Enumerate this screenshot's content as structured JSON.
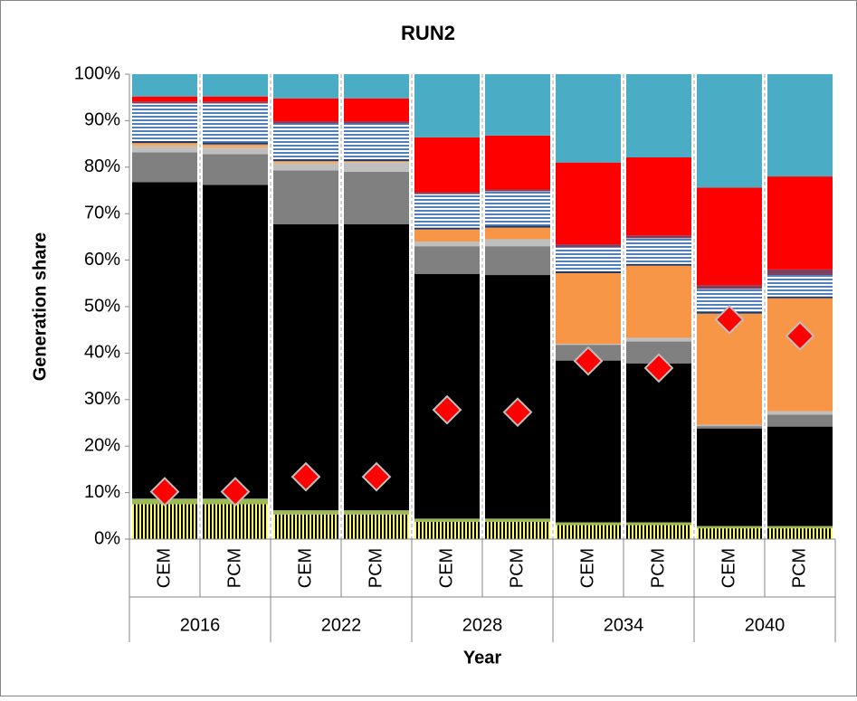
{
  "chart_data": {
    "type": "stacked-bar",
    "title": "RUN2",
    "y_label": "Generation share",
    "x_label": "Year",
    "categories": [
      "CEM",
      "PCM",
      "CEM",
      "PCM",
      "CEM",
      "PCM",
      "CEM",
      "PCM",
      "CEM",
      "PCM"
    ],
    "groups": [
      "2016",
      "2022",
      "2028",
      "2034",
      "2040"
    ],
    "ylim": [
      0,
      100
    ],
    "yticks": [
      {
        "value": 0,
        "label": "0%"
      },
      {
        "value": 10,
        "label": "10%"
      },
      {
        "value": 20,
        "label": "20%"
      },
      {
        "value": 30,
        "label": "30%"
      },
      {
        "value": 40,
        "label": "40%"
      },
      {
        "value": 50,
        "label": "50%"
      },
      {
        "value": 60,
        "label": "60%"
      },
      {
        "value": 70,
        "label": "70%"
      },
      {
        "value": 80,
        "label": "80%"
      },
      {
        "value": 90,
        "label": "90%"
      },
      {
        "value": 100,
        "label": "100%"
      }
    ],
    "legend": false,
    "series": [
      {
        "color": "#ffff66",
        "pattern": "vertical",
        "values": [
          7.5,
          7.5,
          5.3,
          5.3,
          3.7,
          3.7,
          3.0,
          3.0,
          2.3,
          2.3
        ]
      },
      {
        "color": "#9bbb59",
        "values": [
          1.2,
          1.2,
          0.9,
          0.9,
          0.7,
          0.7,
          0.6,
          0.6,
          0.5,
          0.5
        ]
      },
      {
        "color": "#000000",
        "values": [
          68.1,
          67.5,
          61.5,
          61.5,
          52.6,
          52.4,
          34.8,
          34.2,
          21.0,
          21.4
        ]
      },
      {
        "color": "#808080",
        "values": [
          6.4,
          6.6,
          11.6,
          11.3,
          6.0,
          6.2,
          3.4,
          4.7,
          0.5,
          2.6
        ]
      },
      {
        "color": "#bfbfbf",
        "values": [
          1.1,
          1.2,
          1.3,
          2.0,
          1.0,
          1.5,
          0.2,
          0.8,
          0.3,
          0.7
        ]
      },
      {
        "color": "#d9b38c",
        "values": [
          0.6,
          0.6,
          0.5,
          0.1,
          0,
          0,
          0,
          0,
          0,
          0
        ]
      },
      {
        "color": "#f79646",
        "values": [
          0.3,
          0.3,
          0.2,
          0.2,
          2.6,
          2.5,
          15.2,
          15.5,
          23.9,
          24.3
        ]
      },
      {
        "color": "#1f3864",
        "values": [
          0.4,
          0.4,
          0.4,
          0.4,
          0.4,
          0.4,
          0.4,
          0.4,
          0.4,
          0.4
        ]
      },
      {
        "color": "#4f81bd",
        "pattern": "horizontal",
        "values": [
          8.1,
          8.4,
          7.7,
          7.7,
          7.2,
          7.4,
          5.2,
          5.5,
          4.9,
          4.6
        ]
      },
      {
        "color": "#7f3f5f",
        "values": [
          0.4,
          0.4,
          0.4,
          0.4,
          0.4,
          0.4,
          0.6,
          0.6,
          0.8,
          1.2
        ]
      },
      {
        "color": "#ff0000",
        "values": [
          1.1,
          1.1,
          5.0,
          5.0,
          11.8,
          11.6,
          17.6,
          16.8,
          21.0,
          20.0
        ]
      },
      {
        "color": "#4bacc6",
        "values": [
          4.8,
          4.8,
          5.2,
          5.2,
          13.6,
          13.2,
          19.0,
          17.9,
          24.4,
          22.0
        ]
      }
    ],
    "markers": {
      "color": "#ff0000",
      "values": [
        10.2,
        10.2,
        13.4,
        13.4,
        27.8,
        27.3,
        38.3,
        36.8,
        47.2,
        43.7
      ]
    }
  }
}
